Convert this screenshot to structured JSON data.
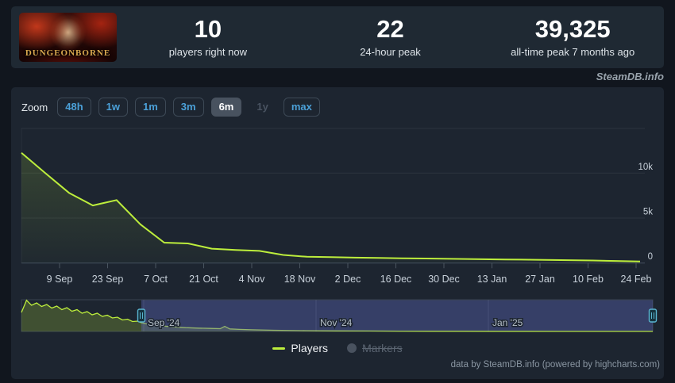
{
  "header": {
    "game_title": "DUNGEONBORNE",
    "stats": [
      {
        "value": "10",
        "label": "players right now"
      },
      {
        "value": "22",
        "label": "24-hour peak"
      },
      {
        "value": "39,325",
        "label": "all-time peak 7 months ago"
      }
    ]
  },
  "watermark": "SteamDB.info",
  "toolbar": {
    "zoom_label": "Zoom",
    "buttons": [
      {
        "label": "48h",
        "state": "normal"
      },
      {
        "label": "1w",
        "state": "normal"
      },
      {
        "label": "1m",
        "state": "normal"
      },
      {
        "label": "3m",
        "state": "normal"
      },
      {
        "label": "6m",
        "state": "selected"
      },
      {
        "label": "1y",
        "state": "disabled"
      },
      {
        "label": "max",
        "state": "normal"
      }
    ]
  },
  "chart_data": {
    "type": "area",
    "title": "",
    "xlabel": "",
    "ylabel": "",
    "grid": true,
    "legend_position": "bottom-center",
    "ylim": [
      0,
      15000
    ],
    "yticks": [
      {
        "label": "0",
        "value": 0
      },
      {
        "label": "5k",
        "value": 5000
      },
      {
        "label": "10k",
        "value": 10000
      }
    ],
    "xticks": [
      "9 Sep",
      "23 Sep",
      "7 Oct",
      "21 Oct",
      "4 Nov",
      "18 Nov",
      "2 Dec",
      "16 Dec",
      "30 Dec",
      "13 Jan",
      "27 Jan",
      "10 Feb",
      "24 Feb"
    ],
    "series": [
      {
        "name": "Players",
        "color": "#bdee3c",
        "dates": [
          "24 Aug",
          "31 Aug",
          "7 Sep",
          "14 Sep",
          "21 Sep",
          "28 Sep",
          "5 Oct",
          "12 Oct",
          "19 Oct",
          "26 Oct",
          "2 Nov",
          "9 Nov",
          "16 Nov",
          "23 Nov",
          "30 Nov",
          "7 Dec",
          "14 Dec",
          "21 Dec",
          "28 Dec",
          "4 Jan",
          "11 Jan",
          "18 Jan",
          "25 Jan",
          "1 Feb",
          "8 Feb",
          "15 Feb",
          "22 Feb"
        ],
        "values": [
          12250,
          10000,
          7800,
          6400,
          7000,
          4300,
          2270,
          2180,
          1600,
          1450,
          1350,
          900,
          700,
          650,
          600,
          560,
          530,
          500,
          470,
          440,
          410,
          380,
          350,
          320,
          280,
          230,
          180
        ]
      }
    ],
    "hidden_series": [
      "Markers"
    ],
    "navigator": {
      "range_labels": [
        "Sep '24",
        "Nov '24",
        "Jan '25"
      ],
      "selected_zoom": "6m",
      "full_range_points_frac_value": [
        [
          0.0,
          24000
        ],
        [
          0.008,
          39325
        ],
        [
          0.016,
          33000
        ],
        [
          0.024,
          36000
        ],
        [
          0.032,
          31500
        ],
        [
          0.04,
          34000
        ],
        [
          0.048,
          29500
        ],
        [
          0.056,
          32000
        ],
        [
          0.064,
          27500
        ],
        [
          0.072,
          30000
        ],
        [
          0.08,
          25500
        ],
        [
          0.088,
          27500
        ],
        [
          0.096,
          23000
        ],
        [
          0.104,
          25000
        ],
        [
          0.112,
          21000
        ],
        [
          0.12,
          23000
        ],
        [
          0.128,
          19000
        ],
        [
          0.136,
          20500
        ],
        [
          0.144,
          17000
        ],
        [
          0.152,
          18000
        ],
        [
          0.16,
          14500
        ],
        [
          0.168,
          15500
        ],
        [
          0.176,
          12500
        ],
        [
          0.184,
          13000
        ],
        [
          0.19,
          11000
        ],
        [
          0.2,
          9500
        ],
        [
          0.21,
          8200
        ],
        [
          0.225,
          6800
        ],
        [
          0.24,
          5800
        ],
        [
          0.26,
          4800
        ],
        [
          0.28,
          4200
        ],
        [
          0.3,
          3800
        ],
        [
          0.315,
          3500
        ],
        [
          0.322,
          6400
        ],
        [
          0.33,
          3200
        ],
        [
          0.345,
          2600
        ],
        [
          0.365,
          2100
        ],
        [
          0.4,
          1500
        ],
        [
          0.45,
          1000
        ],
        [
          0.5,
          750
        ],
        [
          0.55,
          550
        ],
        [
          0.6,
          420
        ],
        [
          0.65,
          330
        ],
        [
          0.7,
          260
        ],
        [
          0.75,
          210
        ],
        [
          0.8,
          170
        ],
        [
          0.85,
          140
        ],
        [
          0.9,
          110
        ],
        [
          0.95,
          85
        ],
        [
          1.0,
          60
        ]
      ],
      "navigator_ymax": 40000
    }
  },
  "legend": {
    "players_label": "Players",
    "markers_label": "Markers"
  },
  "credits": "data by SteamDB.info (powered by highcharts.com)",
  "colors": {
    "accent_line": "#bdee3c",
    "button_text": "#4ba0d8",
    "selected_button_bg": "#48525f",
    "panel_bg": "#1d2530",
    "header_bg": "#1f2933",
    "navigator_mask": "rgba(90,100,180,0.42)",
    "navigator_handle": "#5ab6d2",
    "axis_line": "#434f5c"
  }
}
